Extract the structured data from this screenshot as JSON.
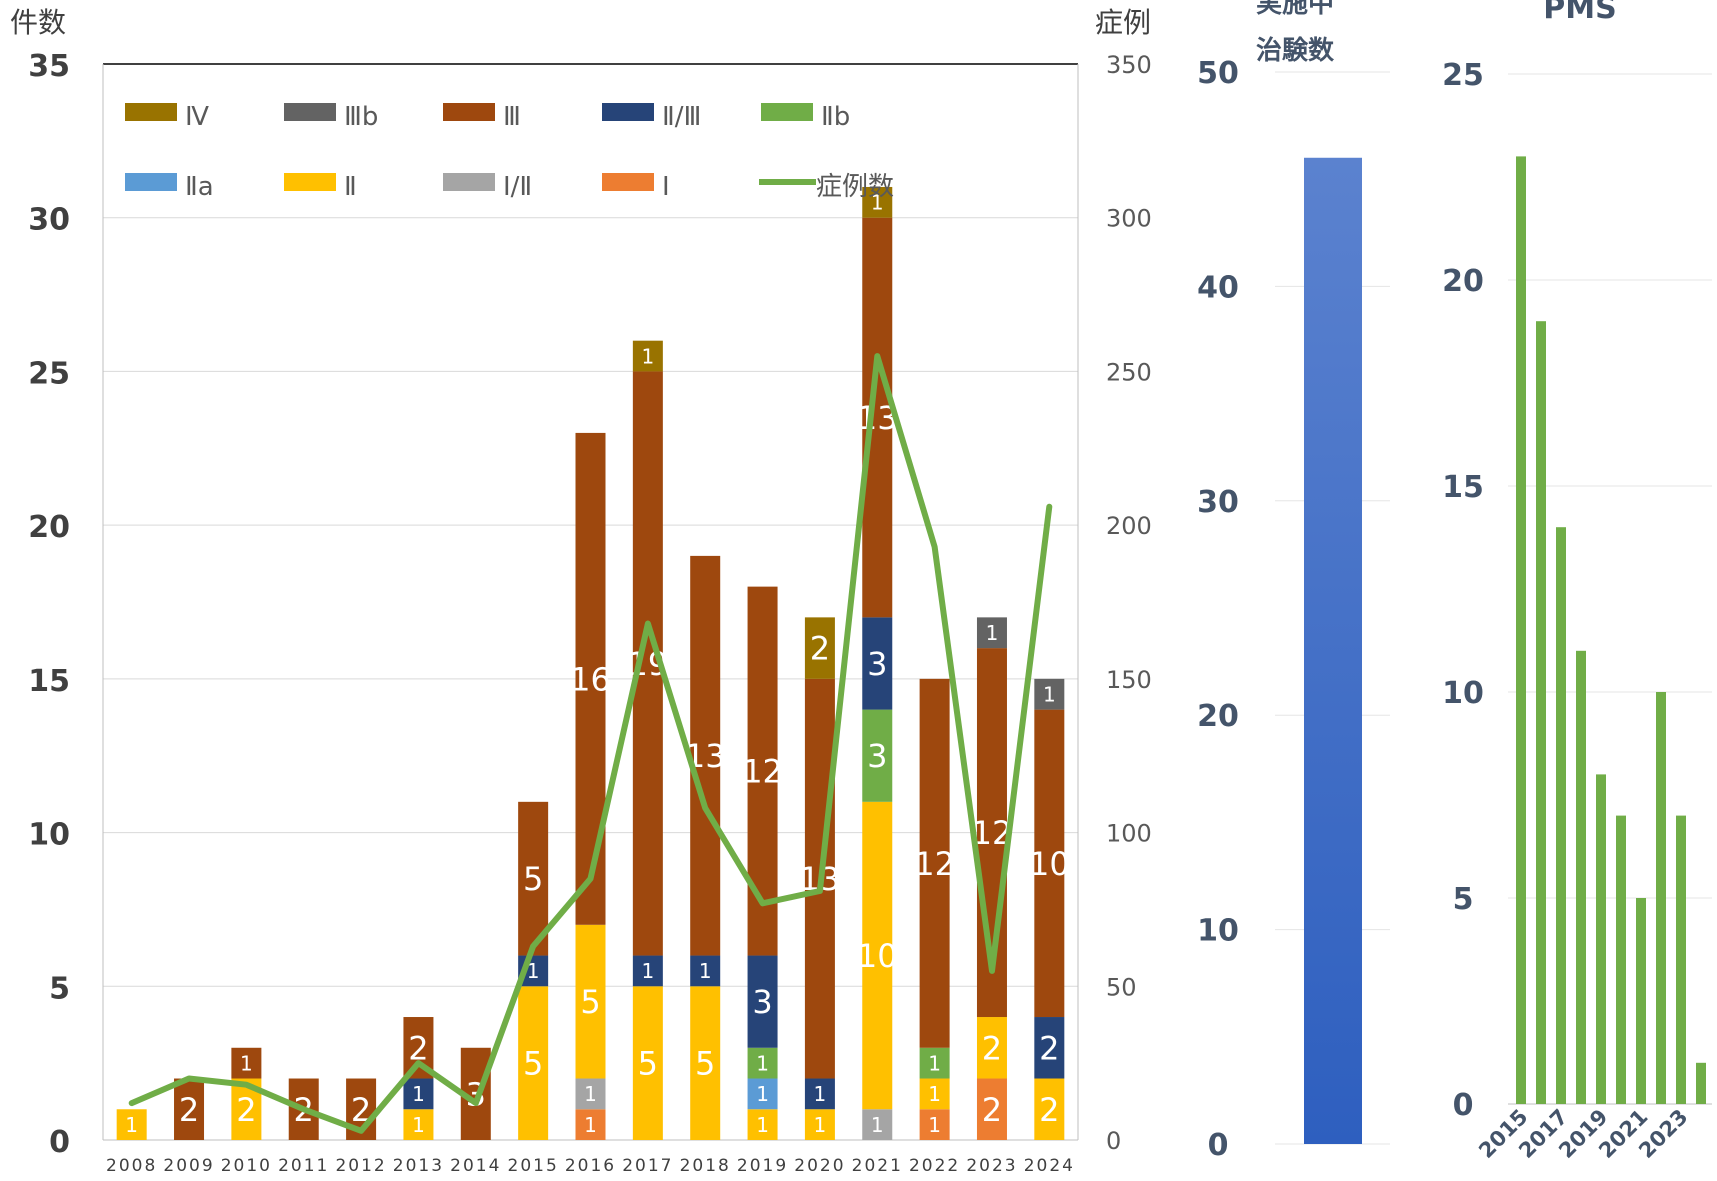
{
  "chart_data": [
    {
      "type": "bar",
      "stacked": true,
      "left_axis_title": "件数",
      "right_axis_title": "症例",
      "x": [
        "2008",
        "2009",
        "2010",
        "2011",
        "2012",
        "2013",
        "2014",
        "2015",
        "2016",
        "2017",
        "2018",
        "2019",
        "2020",
        "2021",
        "2022",
        "2023",
        "2024"
      ],
      "ylim_left": [
        0,
        35
      ],
      "ylim_right": [
        0,
        350
      ],
      "yticks_left": [
        "0",
        "5",
        "10",
        "15",
        "20",
        "25",
        "30",
        "35"
      ],
      "yticks_right": [
        "0",
        "50",
        "100",
        "150",
        "200",
        "250",
        "300",
        "350"
      ],
      "grid": true,
      "legend_position": "top-left",
      "legend": [
        "Ⅳ",
        "Ⅲb",
        "Ⅲ",
        "Ⅱ/Ⅲ",
        "Ⅱb",
        "Ⅱa",
        "Ⅱ",
        "Ⅰ/Ⅱ",
        "Ⅰ",
        "症例数"
      ],
      "series": [
        {
          "name": "Ⅰ",
          "color": "#ed7d31",
          "values": [
            0,
            0,
            0,
            0,
            0,
            0,
            0,
            0,
            1,
            0,
            0,
            0,
            0,
            0,
            1,
            2,
            0
          ]
        },
        {
          "name": "Ⅰ/Ⅱ",
          "color": "#a5a5a5",
          "values": [
            0,
            0,
            0,
            0,
            0,
            0,
            0,
            0,
            1,
            0,
            0,
            0,
            0,
            1,
            0,
            0,
            0
          ]
        },
        {
          "name": "Ⅱ",
          "color": "#ffc000",
          "values": [
            1,
            0,
            2,
            0,
            0,
            1,
            0,
            5,
            5,
            5,
            5,
            1,
            1,
            10,
            1,
            2,
            2
          ]
        },
        {
          "name": "Ⅱa",
          "color": "#5b9bd5",
          "values": [
            0,
            0,
            0,
            0,
            0,
            0,
            0,
            0,
            0,
            0,
            0,
            1,
            0,
            0,
            0,
            0,
            0
          ]
        },
        {
          "name": "Ⅱb",
          "color": "#70ad47",
          "values": [
            0,
            0,
            0,
            0,
            0,
            0,
            0,
            0,
            0,
            0,
            0,
            1,
            0,
            3,
            1,
            0,
            0
          ]
        },
        {
          "name": "Ⅱ/Ⅲ",
          "color": "#264478",
          "values": [
            0,
            0,
            0,
            0,
            0,
            1,
            0,
            1,
            0,
            1,
            1,
            3,
            1,
            3,
            0,
            0,
            2
          ]
        },
        {
          "name": "Ⅲ",
          "color": "#9e480e",
          "values": [
            0,
            2,
            1,
            2,
            2,
            2,
            3,
            5,
            16,
            19,
            13,
            12,
            13,
            13,
            12,
            12,
            10
          ]
        },
        {
          "name": "Ⅲb",
          "color": "#636363",
          "values": [
            0,
            0,
            0,
            0,
            0,
            0,
            0,
            0,
            0,
            0,
            0,
            0,
            0,
            0,
            0,
            1,
            1
          ]
        },
        {
          "name": "Ⅳ",
          "color": "#997300",
          "values": [
            0,
            0,
            0,
            0,
            0,
            0,
            0,
            0,
            0,
            1,
            0,
            0,
            2,
            1,
            0,
            0,
            0
          ]
        }
      ],
      "line": {
        "name": "症例数",
        "color": "#70ad47",
        "axis": "right",
        "values": [
          12,
          20,
          18,
          10,
          3,
          25,
          12,
          63,
          85,
          168,
          108,
          77,
          81,
          255,
          193,
          55,
          206
        ]
      }
    },
    {
      "type": "bar",
      "title_lines": [
        "実施中",
        "治験数"
      ],
      "ylim": [
        0,
        50
      ],
      "yticks": [
        "0",
        "10",
        "20",
        "30",
        "40",
        "50"
      ],
      "values": [
        46
      ],
      "color_top": "#5b82cf",
      "color_bottom": "#2e5fbf"
    },
    {
      "type": "bar",
      "title": "PMS",
      "ylim": [
        0,
        25
      ],
      "yticks": [
        "0",
        "5",
        "10",
        "15",
        "20",
        "25"
      ],
      "x": [
        "2015",
        "2016",
        "2017",
        "2018",
        "2019",
        "2020",
        "2021",
        "2022",
        "2023",
        "2024"
      ],
      "xtick_labels": [
        "2015",
        "2017",
        "2019",
        "2021",
        "2023"
      ],
      "values": [
        23,
        19,
        14,
        11,
        8,
        7,
        5,
        10,
        7,
        1
      ],
      "color": "#70ad47"
    }
  ]
}
